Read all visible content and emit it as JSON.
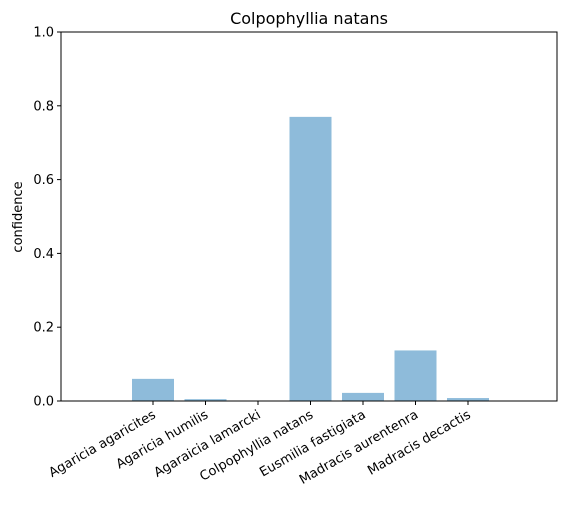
{
  "chart_data": {
    "type": "bar",
    "title": "Colpophyllia natans",
    "xlabel": "",
    "ylabel": "confidence",
    "categories": [
      "Agaricia agaricites",
      "Agaricia humilis",
      "Agaraicia lamarcki",
      "Colpophyllia natans",
      "Eusmilia fastigiata",
      "Madracis aurentenra",
      "Madracis decactis"
    ],
    "values": [
      0.06,
      0.005,
      0.0,
      0.77,
      0.022,
      0.137,
      0.008
    ],
    "ylim": [
      0,
      1
    ],
    "yticks": [
      "0.0",
      "0.2",
      "0.4",
      "0.6",
      "0.8",
      "1.0"
    ],
    "bar_color": "#8ebbda",
    "grid": false
  }
}
